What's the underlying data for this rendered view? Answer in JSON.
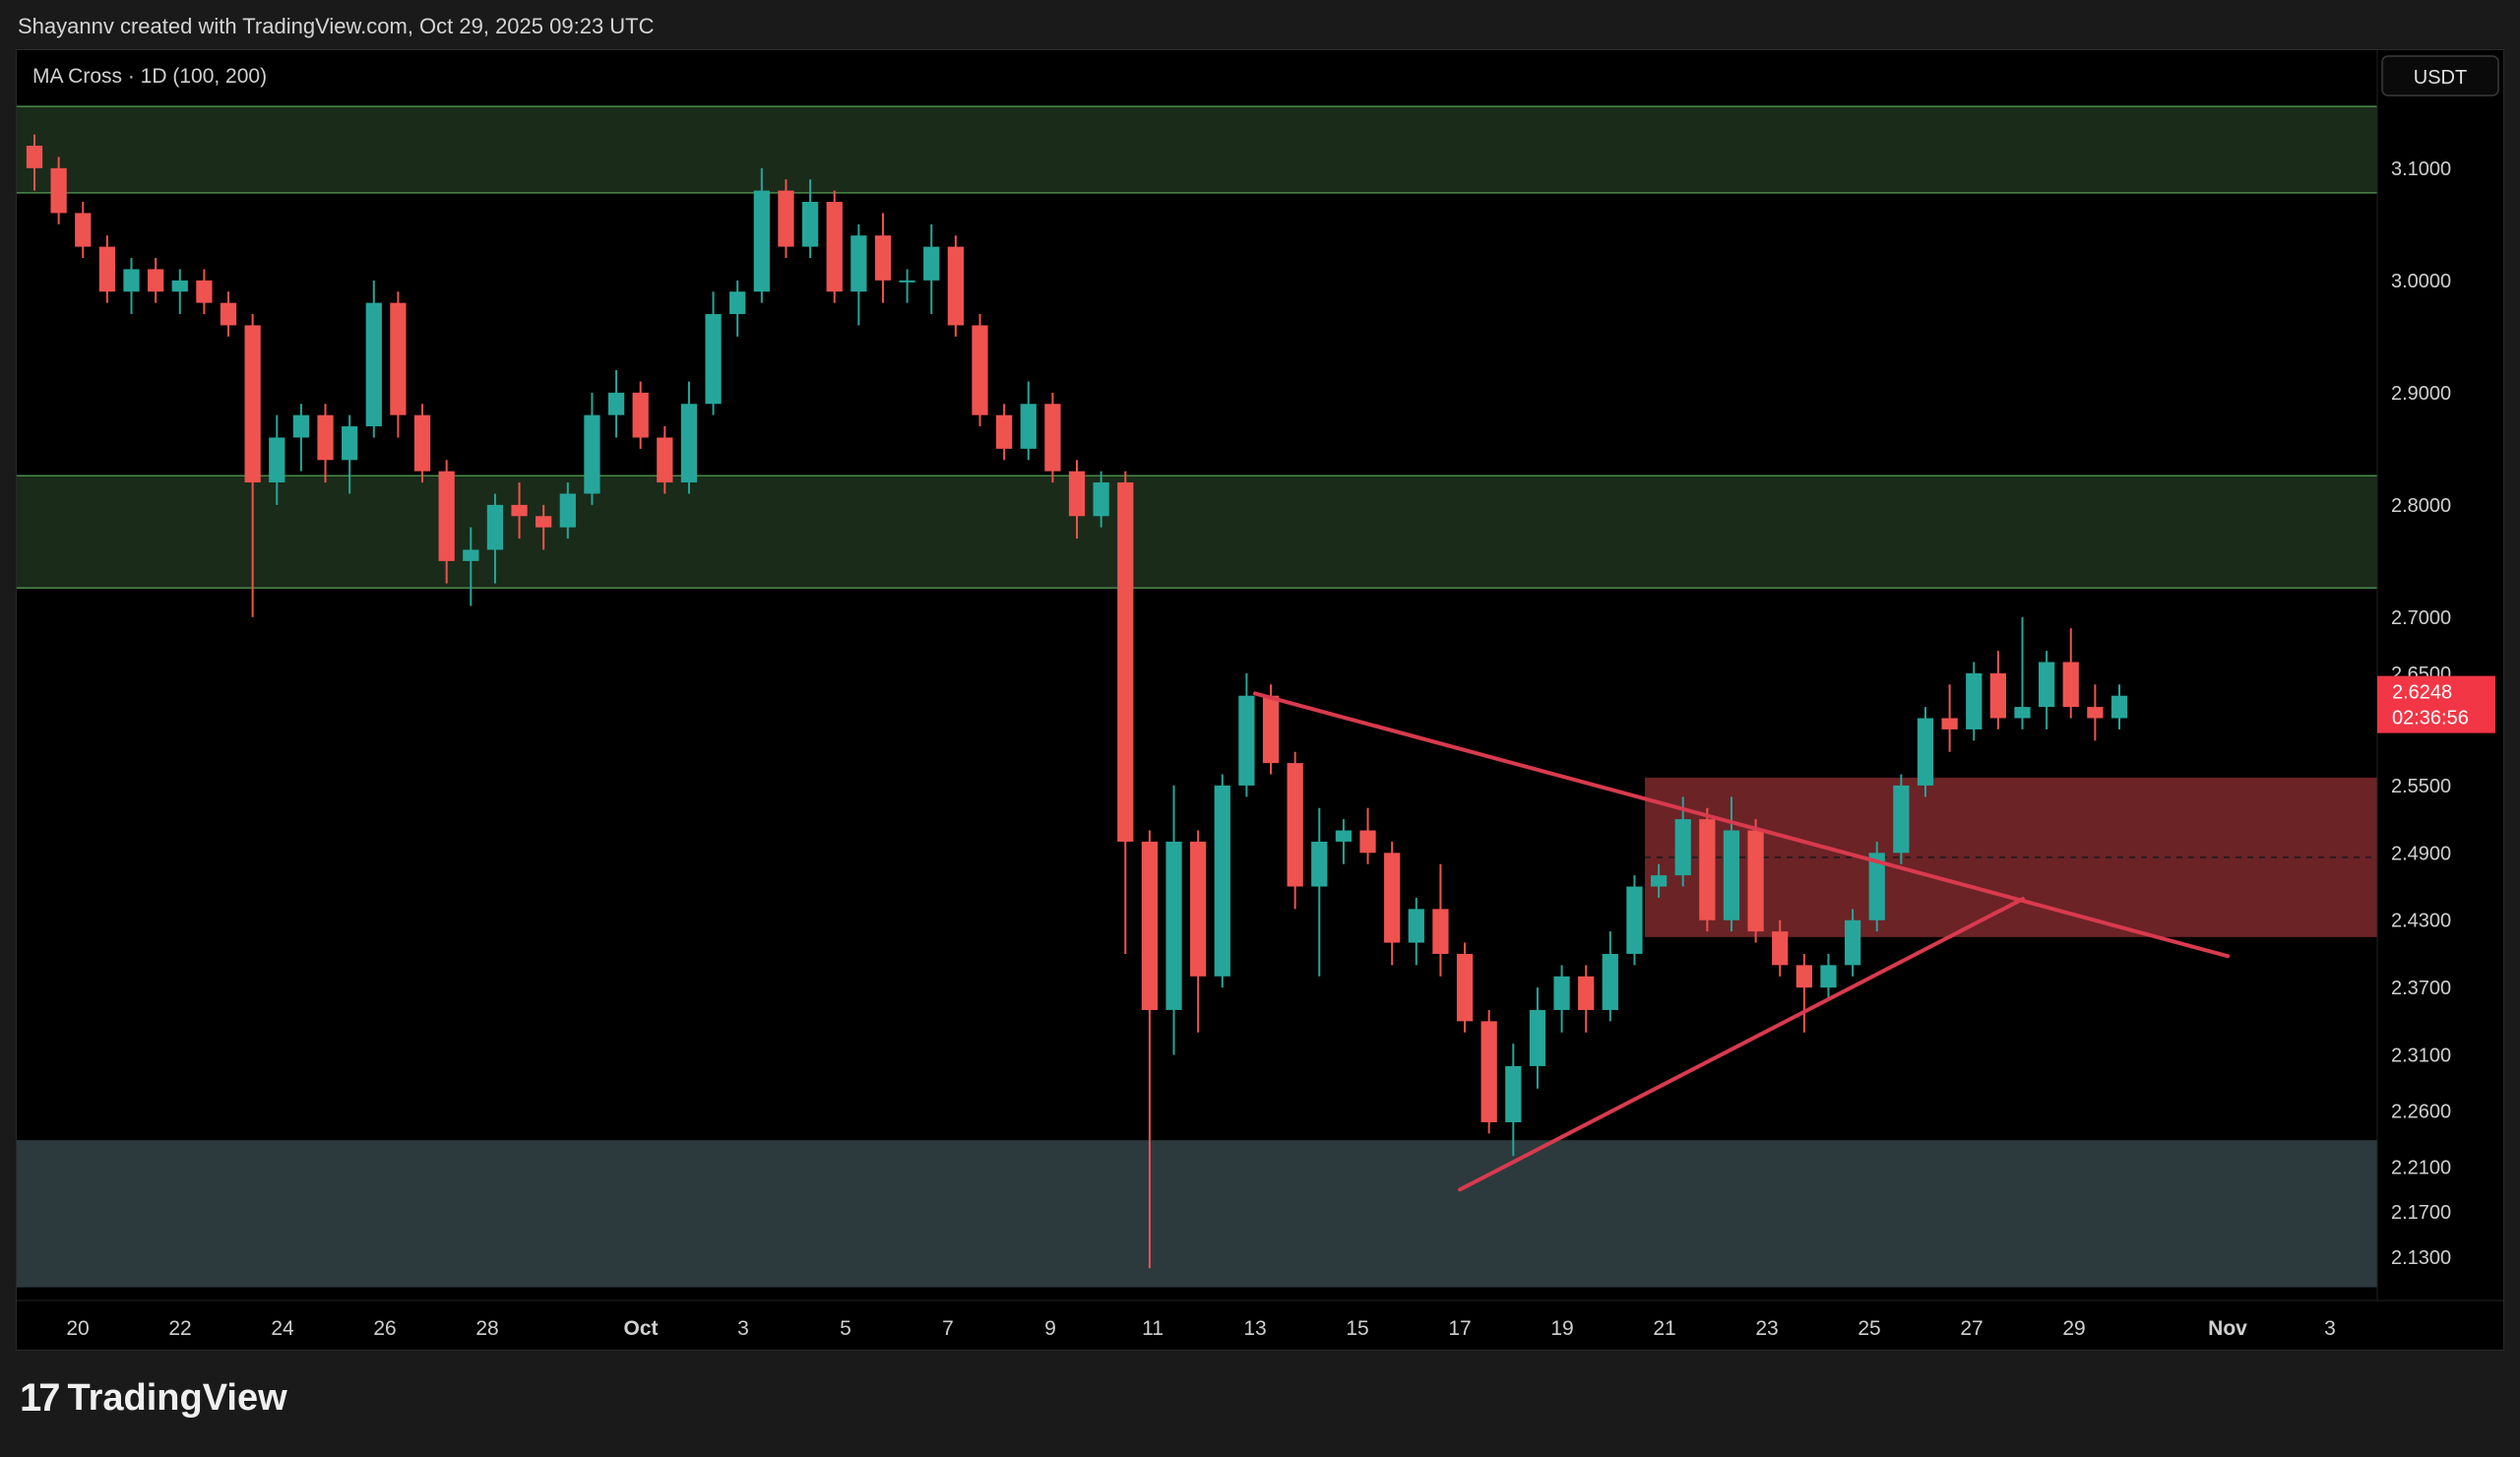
{
  "header": {
    "attribution": "Shayannv created with TradingView.com, Oct 29, 2025 09:23 UTC"
  },
  "footer": {
    "brand_glyph": "17",
    "brand_name": "TradingView"
  },
  "chart_data": {
    "type": "candlestick",
    "indicator_label": "MA Cross · 1D (100, 200)",
    "currency": "USDT",
    "ylim": [
      2.1,
      3.17
    ],
    "y_ticks": [
      "3.1000",
      "3.0000",
      "2.9000",
      "2.8000",
      "2.7000",
      "2.6500",
      "2.5500",
      "2.4900",
      "2.4300",
      "2.3700",
      "2.3100",
      "2.2600",
      "2.2100",
      "2.1700",
      "2.1300"
    ],
    "x_ticks": [
      "20",
      "22",
      "24",
      "26",
      "28",
      "Oct",
      "3",
      "5",
      "7",
      "9",
      "11",
      "13",
      "15",
      "17",
      "19",
      "21",
      "23",
      "25",
      "27",
      "29",
      "Nov",
      "3"
    ],
    "last_price": "2.6248",
    "countdown": "02:36:56",
    "zones": [
      {
        "name": "upper-supply-zone",
        "y1": 3.155,
        "y2": 3.078,
        "color": "#1a2b1a"
      },
      {
        "name": "middle-supply-zone",
        "y1": 2.826,
        "y2": 2.726,
        "color": "#1a2b1a"
      },
      {
        "name": "fvg-zone",
        "y1": 2.557,
        "y2": 2.415,
        "color": "#6b2326",
        "midline": 2.486
      },
      {
        "name": "demand-zone",
        "y1": 2.234,
        "y2": 2.103,
        "color": "#2c3a3e"
      }
    ],
    "trendlines": [
      {
        "name": "descending-trendline",
        "x1": "Oct 13",
        "y1": 2.632,
        "x2": "Nov 1",
        "y2": 2.398
      },
      {
        "name": "ascending-trendline",
        "x1": "Oct 17",
        "y1": 2.19,
        "x2": "Oct 28",
        "y2": 2.449
      }
    ],
    "candles": [
      [
        3.12,
        3.13,
        3.08,
        3.1
      ],
      [
        3.1,
        3.11,
        3.05,
        3.06
      ],
      [
        3.06,
        3.07,
        3.02,
        3.03
      ],
      [
        3.03,
        3.04,
        2.98,
        2.99
      ],
      [
        2.99,
        3.02,
        2.97,
        3.01
      ],
      [
        3.01,
        3.02,
        2.98,
        2.99
      ],
      [
        2.99,
        3.01,
        2.97,
        3.0
      ],
      [
        3.0,
        3.01,
        2.97,
        2.98
      ],
      [
        2.98,
        2.99,
        2.95,
        2.96
      ],
      [
        2.96,
        2.97,
        2.7,
        2.82
      ],
      [
        2.82,
        2.88,
        2.8,
        2.86
      ],
      [
        2.86,
        2.89,
        2.83,
        2.88
      ],
      [
        2.88,
        2.89,
        2.82,
        2.84
      ],
      [
        2.84,
        2.88,
        2.81,
        2.87
      ],
      [
        2.87,
        3.0,
        2.86,
        2.98
      ],
      [
        2.98,
        2.99,
        2.86,
        2.88
      ],
      [
        2.88,
        2.89,
        2.82,
        2.83
      ],
      [
        2.83,
        2.84,
        2.73,
        2.75
      ],
      [
        2.75,
        2.78,
        2.71,
        2.76
      ],
      [
        2.76,
        2.81,
        2.73,
        2.8
      ],
      [
        2.8,
        2.82,
        2.77,
        2.79
      ],
      [
        2.79,
        2.8,
        2.76,
        2.78
      ],
      [
        2.78,
        2.82,
        2.77,
        2.81
      ],
      [
        2.81,
        2.9,
        2.8,
        2.88
      ],
      [
        2.88,
        2.92,
        2.86,
        2.9
      ],
      [
        2.9,
        2.91,
        2.85,
        2.86
      ],
      [
        2.86,
        2.87,
        2.81,
        2.82
      ],
      [
        2.82,
        2.91,
        2.81,
        2.89
      ],
      [
        2.89,
        2.99,
        2.88,
        2.97
      ],
      [
        2.97,
        3.0,
        2.95,
        2.99
      ],
      [
        2.99,
        3.1,
        2.98,
        3.08
      ],
      [
        3.08,
        3.09,
        3.02,
        3.03
      ],
      [
        3.03,
        3.09,
        3.02,
        3.07
      ],
      [
        3.07,
        3.08,
        2.98,
        2.99
      ],
      [
        2.99,
        3.05,
        2.96,
        3.04
      ],
      [
        3.04,
        3.06,
        2.98,
        3.0
      ],
      [
        3.0,
        3.01,
        2.98,
        3.0
      ],
      [
        3.0,
        3.05,
        2.97,
        3.03
      ],
      [
        3.03,
        3.04,
        2.95,
        2.96
      ],
      [
        2.96,
        2.97,
        2.87,
        2.88
      ],
      [
        2.88,
        2.89,
        2.84,
        2.85
      ],
      [
        2.85,
        2.91,
        2.84,
        2.89
      ],
      [
        2.89,
        2.9,
        2.82,
        2.83
      ],
      [
        2.83,
        2.84,
        2.77,
        2.79
      ],
      [
        2.79,
        2.83,
        2.78,
        2.82
      ],
      [
        2.82,
        2.83,
        2.4,
        2.5
      ],
      [
        2.5,
        2.51,
        2.12,
        2.35
      ],
      [
        2.35,
        2.55,
        2.31,
        2.5
      ],
      [
        2.5,
        2.51,
        2.33,
        2.38
      ],
      [
        2.38,
        2.56,
        2.37,
        2.55
      ],
      [
        2.55,
        2.65,
        2.54,
        2.63
      ],
      [
        2.63,
        2.64,
        2.56,
        2.57
      ],
      [
        2.57,
        2.58,
        2.44,
        2.46
      ],
      [
        2.46,
        2.53,
        2.38,
        2.5
      ],
      [
        2.5,
        2.52,
        2.48,
        2.51
      ],
      [
        2.51,
        2.53,
        2.48,
        2.49
      ],
      [
        2.49,
        2.5,
        2.39,
        2.41
      ],
      [
        2.41,
        2.45,
        2.39,
        2.44
      ],
      [
        2.44,
        2.48,
        2.38,
        2.4
      ],
      [
        2.4,
        2.41,
        2.33,
        2.34
      ],
      [
        2.34,
        2.35,
        2.24,
        2.25
      ],
      [
        2.25,
        2.32,
        2.22,
        2.3
      ],
      [
        2.3,
        2.37,
        2.28,
        2.35
      ],
      [
        2.35,
        2.39,
        2.33,
        2.38
      ],
      [
        2.38,
        2.39,
        2.33,
        2.35
      ],
      [
        2.35,
        2.42,
        2.34,
        2.4
      ],
      [
        2.4,
        2.47,
        2.39,
        2.46
      ],
      [
        2.46,
        2.48,
        2.45,
        2.47
      ],
      [
        2.47,
        2.54,
        2.46,
        2.52
      ],
      [
        2.52,
        2.53,
        2.42,
        2.43
      ],
      [
        2.43,
        2.54,
        2.42,
        2.51
      ],
      [
        2.51,
        2.52,
        2.41,
        2.42
      ],
      [
        2.42,
        2.43,
        2.38,
        2.39
      ],
      [
        2.39,
        2.4,
        2.33,
        2.37
      ],
      [
        2.37,
        2.4,
        2.36,
        2.39
      ],
      [
        2.39,
        2.44,
        2.38,
        2.43
      ],
      [
        2.43,
        2.5,
        2.42,
        2.49
      ],
      [
        2.49,
        2.56,
        2.48,
        2.55
      ],
      [
        2.55,
        2.62,
        2.54,
        2.61
      ],
      [
        2.61,
        2.64,
        2.58,
        2.6
      ],
      [
        2.6,
        2.66,
        2.59,
        2.65
      ],
      [
        2.65,
        2.67,
        2.6,
        2.61
      ],
      [
        2.61,
        2.7,
        2.6,
        2.62
      ],
      [
        2.62,
        2.67,
        2.6,
        2.66
      ],
      [
        2.66,
        2.69,
        2.61,
        2.62
      ],
      [
        2.62,
        2.64,
        2.59,
        2.61
      ],
      [
        2.61,
        2.64,
        2.6,
        2.63
      ]
    ]
  }
}
